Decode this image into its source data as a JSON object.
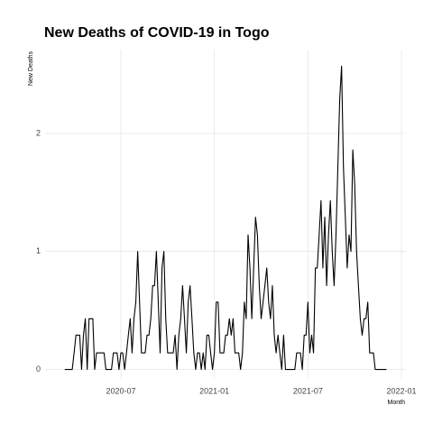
{
  "chart_data": {
    "type": "line",
    "title": "New Deaths of COVID-19 in Togo",
    "x_label": "Month",
    "y_label": "New Deaths",
    "color": "#000000",
    "grid": true,
    "xlim": [
      2020.095,
      2022.024
    ],
    "ylim": [
      -0.08,
      2.71
    ],
    "xticks": [
      {
        "value": 2020.5,
        "label": "2020-07"
      },
      {
        "value": 2021,
        "label": "2021-01"
      },
      {
        "value": 2021.5,
        "label": "2021-07"
      },
      {
        "value": 2022,
        "label": "2022-01"
      }
    ],
    "yticks": [
      0,
      1,
      2
    ],
    "x": [
      2020.2,
      2020.21,
      2020.22,
      2020.23,
      2020.24,
      2020.25,
      2020.26,
      2020.27,
      2020.28,
      2020.29,
      2020.3,
      2020.31,
      2020.32,
      2020.33,
      2020.34,
      2020.35,
      2020.36,
      2020.37,
      2020.38,
      2020.39,
      2020.4,
      2020.41,
      2020.42,
      2020.43,
      2020.44,
      2020.45,
      2020.46,
      2020.47,
      2020.48,
      2020.49,
      2020.5,
      2020.51,
      2020.52,
      2020.53,
      2020.54,
      2020.55,
      2020.56,
      2020.57,
      2020.58,
      2020.59,
      2020.6,
      2020.61,
      2020.62,
      2020.63,
      2020.64,
      2020.65,
      2020.66,
      2020.67,
      2020.68,
      2020.69,
      2020.7,
      2020.71,
      2020.72,
      2020.73,
      2020.74,
      2020.75,
      2020.76,
      2020.77,
      2020.78,
      2020.79,
      2020.8,
      2020.81,
      2020.82,
      2020.83,
      2020.84,
      2020.85,
      2020.86,
      2020.87,
      2020.88,
      2020.89,
      2020.9,
      2020.91,
      2020.92,
      2020.93,
      2020.94,
      2020.95,
      2020.96,
      2020.97,
      2020.98,
      2020.99,
      2021,
      2021.01,
      2021.02,
      2021.03,
      2021.04,
      2021.05,
      2021.06,
      2021.07,
      2021.08,
      2021.09,
      2021.1,
      2021.11,
      2021.12,
      2021.13,
      2021.14,
      2021.15,
      2021.16,
      2021.17,
      2021.18,
      2021.19,
      2021.2,
      2021.21,
      2021.22,
      2021.23,
      2021.24,
      2021.25,
      2021.26,
      2021.27,
      2021.28,
      2021.29,
      2021.3,
      2021.31,
      2021.32,
      2021.33,
      2021.34,
      2021.35,
      2021.36,
      2021.37,
      2021.38,
      2021.39,
      2021.4,
      2021.41,
      2021.42,
      2021.43,
      2021.44,
      2021.45,
      2021.46,
      2021.47,
      2021.48,
      2021.49,
      2021.5,
      2021.51,
      2021.52,
      2021.53,
      2021.54,
      2021.55,
      2021.56,
      2021.57,
      2021.58,
      2021.59,
      2021.6,
      2021.61,
      2021.62,
      2021.63,
      2021.64,
      2021.65,
      2021.66,
      2021.67,
      2021.68,
      2021.69,
      2021.7,
      2021.71,
      2021.72,
      2021.73,
      2021.74,
      2021.75,
      2021.76,
      2021.77,
      2021.78,
      2021.79,
      2021.8,
      2021.81,
      2021.82,
      2021.83,
      2021.84,
      2021.85,
      2021.86,
      2021.87,
      2021.88,
      2021.89,
      2021.9,
      2021.91,
      2021.92
    ],
    "values": [
      0,
      0,
      0,
      0,
      0,
      0.14,
      0.29,
      0.29,
      0.29,
      0,
      0.29,
      0.43,
      0,
      0.43,
      0.43,
      0.43,
      0,
      0.14,
      0.14,
      0.14,
      0.14,
      0.14,
      0,
      0,
      0,
      0,
      0.14,
      0.14,
      0.14,
      0,
      0.14,
      0.14,
      0,
      0.14,
      0.29,
      0.43,
      0.14,
      0.43,
      0.57,
      1,
      0.57,
      0.14,
      0.14,
      0.14,
      0.29,
      0.29,
      0.43,
      0.71,
      0.71,
      1,
      0.57,
      0.14,
      0.86,
      1,
      0.43,
      0.14,
      0.14,
      0.14,
      0.14,
      0.29,
      0,
      0.29,
      0.43,
      0.71,
      0.43,
      0.14,
      0.57,
      0.71,
      0.43,
      0.14,
      0,
      0.14,
      0.14,
      0,
      0.14,
      0,
      0.29,
      0.29,
      0.14,
      0,
      0.14,
      0.57,
      0.57,
      0.14,
      0.14,
      0.14,
      0.29,
      0.29,
      0.43,
      0.29,
      0.43,
      0.14,
      0.14,
      0.14,
      0,
      0.14,
      0.57,
      0.43,
      1.14,
      0.86,
      0.43,
      0.86,
      1.29,
      1.14,
      0.71,
      0.43,
      0.57,
      0.71,
      0.86,
      0.57,
      0.43,
      0.71,
      0.29,
      0.14,
      0.29,
      0.14,
      0,
      0.29,
      0,
      0,
      0,
      0,
      0,
      0,
      0.14,
      0.14,
      0.14,
      0,
      0.29,
      0.29,
      0.57,
      0.14,
      0.29,
      0.14,
      0.86,
      0.86,
      1.14,
      1.43,
      0.86,
      1.29,
      0.71,
      1.14,
      1.43,
      1,
      0.71,
      1.14,
      1.71,
      2.29,
      2.57,
      1.71,
      1.29,
      0.86,
      1.14,
      1,
      1.86,
      1.57,
      1,
      0.71,
      0.43,
      0.29,
      0.43,
      0.43,
      0.57,
      0.14,
      0.14,
      0.14,
      0,
      0,
      0,
      0,
      0,
      0,
      0
    ]
  }
}
